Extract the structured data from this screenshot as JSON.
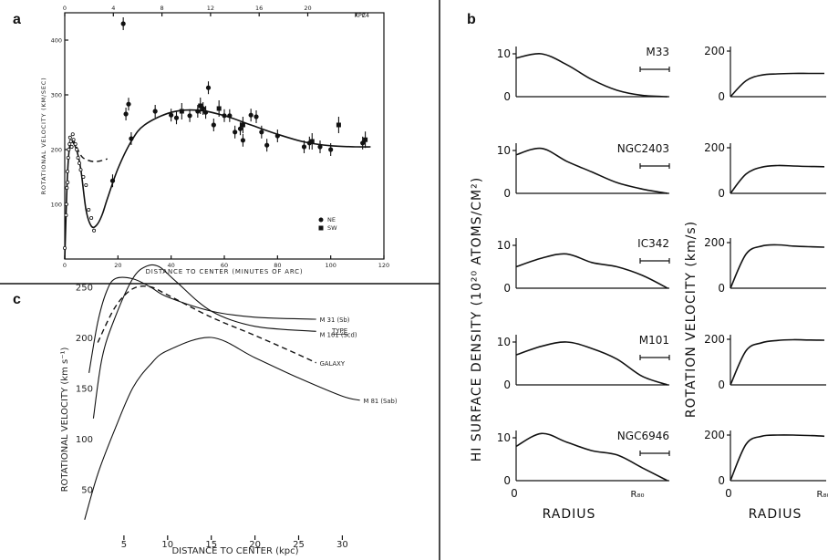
{
  "chart_data": [
    {
      "panel": "a",
      "type": "scatter",
      "xlabel": "DISTANCE TO CENTER (MINUTES OF ARC)",
      "ylabel": "ROTATIONAL VELOCITY (KM/SEC)",
      "top_axis_label": "KPC",
      "xlim": [
        0,
        120
      ],
      "ylim": [
        0,
        450
      ],
      "x_ticks": [
        "0",
        "20",
        "40",
        "60",
        "80",
        "100",
        "120"
      ],
      "y_ticks": [
        "100",
        "200",
        "300",
        "400"
      ],
      "top_ticks": [
        "0",
        "4",
        "8",
        "12",
        "16",
        "20",
        "24"
      ],
      "legend": [
        {
          "name": "NE",
          "marker": "circle"
        },
        {
          "name": "SW",
          "marker": "square"
        }
      ],
      "series": [
        {
          "name": "NE",
          "points": [
            [
              22,
              430
            ],
            [
              24,
              283
            ],
            [
              23,
              265
            ],
            [
              25,
              220
            ],
            [
              18,
              143
            ],
            [
              34,
              270
            ],
            [
              40,
              263
            ],
            [
              42,
              258
            ],
            [
              47,
              262
            ],
            [
              50,
              270
            ],
            [
              52,
              275
            ],
            [
              53,
              268
            ],
            [
              54,
              313
            ],
            [
              56,
              245
            ],
            [
              60,
              262
            ],
            [
              62,
              262
            ],
            [
              64,
              232
            ],
            [
              66,
              238
            ],
            [
              67,
              217
            ],
            [
              70,
              263
            ],
            [
              72,
              260
            ],
            [
              74,
              232
            ],
            [
              76,
              208
            ],
            [
              80,
              225
            ],
            [
              90,
              205
            ],
            [
              92,
              212
            ],
            [
              96,
              205
            ],
            [
              100,
              200
            ],
            [
              112,
              212
            ]
          ]
        },
        {
          "name": "SW",
          "points": [
            [
              44,
              270
            ],
            [
              51,
              280
            ],
            [
              58,
              275
            ],
            [
              67,
              245
            ],
            [
              93,
              215
            ],
            [
              103,
              245
            ],
            [
              113,
              218
            ]
          ]
        },
        {
          "name": "inner",
          "points": [
            [
              0,
              20
            ],
            [
              0.5,
              80
            ],
            [
              0.8,
              130
            ],
            [
              1,
              160
            ],
            [
              1.3,
              185
            ],
            [
              1.5,
              200
            ],
            [
              1.8,
              210
            ],
            [
              2,
              222
            ],
            [
              2.3,
              215
            ],
            [
              2.6,
              205
            ],
            [
              3,
              228
            ],
            [
              3.3,
              218
            ],
            [
              4,
              210
            ],
            [
              4.5,
              200
            ],
            [
              5,
              185
            ],
            [
              5.5,
              175
            ],
            [
              6,
              163
            ],
            [
              7,
              150
            ],
            [
              8,
              135
            ],
            [
              9,
              90
            ],
            [
              10,
              75
            ],
            [
              11,
              52
            ],
            [
              0.6,
              100
            ],
            [
              1.1,
              140
            ]
          ]
        }
      ],
      "curve_solid": [
        [
          0,
          0
        ],
        [
          1,
          150
        ],
        [
          2,
          210
        ],
        [
          4,
          205
        ],
        [
          6,
          165
        ],
        [
          8,
          90
        ],
        [
          10,
          60
        ],
        [
          12,
          62
        ],
        [
          14,
          80
        ],
        [
          16,
          110
        ],
        [
          20,
          165
        ],
        [
          25,
          215
        ],
        [
          30,
          245
        ],
        [
          40,
          268
        ],
        [
          50,
          272
        ],
        [
          60,
          262
        ],
        [
          70,
          245
        ],
        [
          80,
          228
        ],
        [
          90,
          214
        ],
        [
          100,
          207
        ],
        [
          110,
          205
        ],
        [
          115,
          205
        ]
      ],
      "curve_dashed": [
        [
          3,
          220
        ],
        [
          6,
          190
        ],
        [
          8,
          182
        ],
        [
          11,
          178
        ],
        [
          14,
          180
        ],
        [
          16,
          183
        ]
      ]
    },
    {
      "panel": "b",
      "type": "line",
      "ylabel_left": "HI SURFACE DENSITY (10²⁰ ATOMS/CM²)",
      "ylabel_right": "ROTATION VELOCITY (km/s)",
      "xlabel": "RADIUS",
      "x_end_label": "R₈₀",
      "galaxies": [
        {
          "name": "M33",
          "density": [
            9,
            10,
            7.5,
            4,
            1.5,
            0.3,
            0
          ],
          "velocity": [
            0,
            70,
            95,
            100,
            102,
            102,
            102
          ]
        },
        {
          "name": "NGC2403",
          "density": [
            9,
            10.5,
            7.5,
            5,
            2.5,
            1,
            0
          ],
          "velocity": [
            0,
            85,
            115,
            122,
            120,
            118,
            117
          ]
        },
        {
          "name": "IC342",
          "density": [
            5,
            7,
            8,
            6,
            5,
            3,
            0
          ],
          "velocity": [
            0,
            150,
            185,
            190,
            185,
            182,
            180
          ]
        },
        {
          "name": "M101",
          "density": [
            7,
            9,
            10,
            8.5,
            6,
            2,
            0
          ],
          "velocity": [
            0,
            150,
            185,
            195,
            198,
            197,
            196
          ]
        },
        {
          "name": "NGC6946",
          "density": [
            8,
            11,
            9,
            7,
            6,
            3,
            0
          ],
          "velocity": [
            0,
            160,
            195,
            200,
            200,
            198,
            195
          ]
        }
      ],
      "density_tick": "10",
      "density_zero": "0",
      "velocity_ticks": [
        "200",
        "0"
      ],
      "velocity_top_first": "200",
      "m33_velocity_tick": "200",
      "x_start": "0"
    },
    {
      "panel": "c",
      "type": "line",
      "xlabel": "DISTANCE TO CENTER (kpc)",
      "ylabel": "ROTATIONAL VELOCITY (km s⁻¹)",
      "legend_title": "TYPE",
      "xlim": [
        0,
        33
      ],
      "ylim": [
        0,
        270
      ],
      "x_ticks": [
        "5",
        "10",
        "15",
        "20",
        "25",
        "30"
      ],
      "y_ticks": [
        "50",
        "100",
        "150",
        "200",
        "250"
      ],
      "series": [
        {
          "name": "M 31  (Sb)",
          "points": [
            [
              1,
              165
            ],
            [
              2,
              215
            ],
            [
              3,
              245
            ],
            [
              4,
              258
            ],
            [
              6,
              258
            ],
            [
              8,
              250
            ],
            [
              10,
              240
            ],
            [
              15,
              226
            ],
            [
              20,
              220
            ],
            [
              27,
              218
            ]
          ]
        },
        {
          "name": "M 101  (Scd)",
          "points": [
            [
              1.5,
              120
            ],
            [
              2.5,
              180
            ],
            [
              4,
              220
            ],
            [
              6,
              258
            ],
            [
              7.5,
              270
            ],
            [
              9,
              270
            ],
            [
              11,
              255
            ],
            [
              15,
              226
            ],
            [
              20,
              211
            ],
            [
              27,
              206
            ]
          ]
        },
        {
          "name": "GALAXY",
          "points": [
            [
              2,
              195
            ],
            [
              4,
              230
            ],
            [
              6,
              248
            ],
            [
              8,
              250
            ],
            [
              10,
              242
            ],
            [
              15,
              220
            ],
            [
              20,
              202
            ],
            [
              25,
              183
            ],
            [
              27,
              175
            ]
          ]
        },
        {
          "name": "M 81  (Sab)",
          "points": [
            [
              0.5,
              20
            ],
            [
              2,
              65
            ],
            [
              4,
              110
            ],
            [
              6,
              150
            ],
            [
              8,
              173
            ],
            [
              10,
              187
            ],
            [
              15,
              200
            ],
            [
              20,
              180
            ],
            [
              25,
              160
            ],
            [
              30,
              142
            ],
            [
              32,
              138
            ]
          ]
        }
      ]
    }
  ],
  "labels": {
    "a": "a",
    "b": "b",
    "c": "c"
  },
  "legend_a": {
    "ne": "NE",
    "sw": "SW"
  },
  "axes_a": {
    "xlabel": "DISTANCE TO CENTER (MINUTES OF ARC)",
    "ylabel": "ROTATIONAL VELOCITY (KM/SEC)",
    "kpc": "KPC"
  },
  "axes_c": {
    "xlabel": "DISTANCE TO CENTER (kpc)",
    "ylabel": "ROTATIONAL VELOCITY (km s⁻¹)",
    "type": "TYPE"
  },
  "axes_b": {
    "left": "HI SURFACE DENSITY (10²⁰ ATOMS/CM²)",
    "right": "ROTATION VELOCITY (km/s)",
    "radius": "RADIUS",
    "r80": "R₈₀",
    "zero": "0"
  }
}
